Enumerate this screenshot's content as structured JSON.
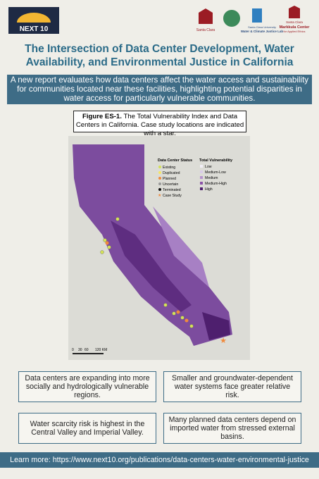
{
  "header": {
    "logo": "NEXT 10",
    "partners": [
      "Santa Clara",
      "Santa Clara University",
      "Water & Climate Justice Lab",
      "Santa Clara",
      "Markkula Center",
      "for Applied Ethics"
    ]
  },
  "title": "The Intersection of Data Center Development, Water Availability, and Environmental Justice in California",
  "subtitle": "A new report evaluates how data centers affect the water access and sustainability for communities located near these facilities, highlighting potential disparities in water access for particularly vulnerable communities.",
  "figure": {
    "label": "Figure ES-1.",
    "caption": "The Total Vulnerability Index and Data Centers in California. Case study locations are indicated with a star.",
    "legend": {
      "status_title": "Data Center Status",
      "status": [
        "Existing",
        "Duplicated",
        "Planned",
        "Uncertain",
        "Terminated",
        "Case Study"
      ],
      "vulnerability_title": "Total Vulnerability",
      "levels": [
        "Low",
        "Medium-Low",
        "Medium",
        "Medium-High",
        "High"
      ]
    },
    "scale": [
      "0",
      "30",
      "60",
      "120 KM"
    ]
  },
  "findings": [
    "Data centers are expanding into more socially and hydrologically vulnerable regions.",
    "Smaller and groundwater-dependent water systems face greater relative risk.",
    "Water scarcity risk is highest in the Central Valley and Imperial Valley.",
    "Many planned data centers depend on imported water from stressed external basins."
  ],
  "footer": "Learn more: https://www.next10.org/publications/data-centers-water-environmental-justice"
}
